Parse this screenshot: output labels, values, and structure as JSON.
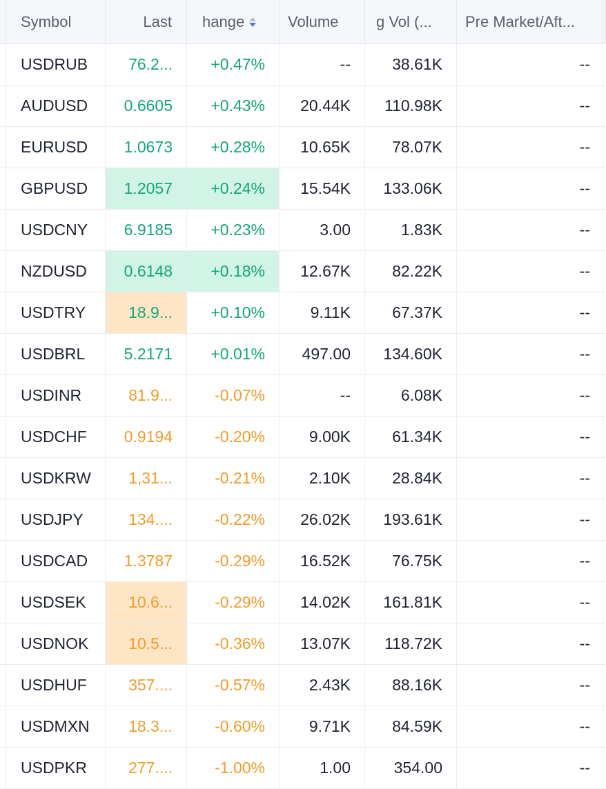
{
  "colors": {
    "positive": "#12a67a",
    "negative": "#f29b27",
    "highlight_green": "#d1f4e6",
    "highlight_orange": "#fde5c5",
    "sort_active": "#3b7ff5"
  },
  "columns": [
    "Symbol",
    "Last",
    "hange",
    "Volume",
    "g Vol (...",
    "Pre Market/Aft..."
  ],
  "rows": [
    {
      "symbol": "USDRUB",
      "last": "76.2...",
      "change": "+0.47%",
      "volume": "--",
      "avg_vol": "38.61K",
      "pre_market": "--",
      "dir": "up",
      "hl_last": "",
      "hl_change": ""
    },
    {
      "symbol": "AUDUSD",
      "last": "0.6605",
      "change": "+0.43%",
      "volume": "20.44K",
      "avg_vol": "110.98K",
      "pre_market": "--",
      "dir": "up",
      "hl_last": "",
      "hl_change": ""
    },
    {
      "symbol": "EURUSD",
      "last": "1.0673",
      "change": "+0.28%",
      "volume": "10.65K",
      "avg_vol": "78.07K",
      "pre_market": "--",
      "dir": "up",
      "hl_last": "",
      "hl_change": ""
    },
    {
      "symbol": "GBPUSD",
      "last": "1.2057",
      "change": "+0.24%",
      "volume": "15.54K",
      "avg_vol": "133.06K",
      "pre_market": "--",
      "dir": "up",
      "hl_last": "green",
      "hl_change": "green"
    },
    {
      "symbol": "USDCNY",
      "last": "6.9185",
      "change": "+0.23%",
      "volume": "3.00",
      "avg_vol": "1.83K",
      "pre_market": "--",
      "dir": "up",
      "hl_last": "",
      "hl_change": ""
    },
    {
      "symbol": "NZDUSD",
      "last": "0.6148",
      "change": "+0.18%",
      "volume": "12.67K",
      "avg_vol": "82.22K",
      "pre_market": "--",
      "dir": "up",
      "hl_last": "green",
      "hl_change": "green"
    },
    {
      "symbol": "USDTRY",
      "last": "18.9...",
      "change": "+0.10%",
      "volume": "9.11K",
      "avg_vol": "67.37K",
      "pre_market": "--",
      "dir": "up",
      "hl_last": "orange",
      "hl_change": ""
    },
    {
      "symbol": "USDBRL",
      "last": "5.2171",
      "change": "+0.01%",
      "volume": "497.00",
      "avg_vol": "134.60K",
      "pre_market": "--",
      "dir": "up",
      "hl_last": "",
      "hl_change": ""
    },
    {
      "symbol": "USDINR",
      "last": "81.9...",
      "change": "-0.07%",
      "volume": "--",
      "avg_vol": "6.08K",
      "pre_market": "--",
      "dir": "down",
      "hl_last": "",
      "hl_change": ""
    },
    {
      "symbol": "USDCHF",
      "last": "0.9194",
      "change": "-0.20%",
      "volume": "9.00K",
      "avg_vol": "61.34K",
      "pre_market": "--",
      "dir": "down",
      "hl_last": "",
      "hl_change": ""
    },
    {
      "symbol": "USDKRW",
      "last": "1,31...",
      "change": "-0.21%",
      "volume": "2.10K",
      "avg_vol": "28.84K",
      "pre_market": "--",
      "dir": "down",
      "hl_last": "",
      "hl_change": ""
    },
    {
      "symbol": "USDJPY",
      "last": "134....",
      "change": "-0.22%",
      "volume": "26.02K",
      "avg_vol": "193.61K",
      "pre_market": "--",
      "dir": "down",
      "hl_last": "",
      "hl_change": ""
    },
    {
      "symbol": "USDCAD",
      "last": "1.3787",
      "change": "-0.29%",
      "volume": "16.52K",
      "avg_vol": "76.75K",
      "pre_market": "--",
      "dir": "down",
      "hl_last": "",
      "hl_change": ""
    },
    {
      "symbol": "USDSEK",
      "last": "10.6...",
      "change": "-0.29%",
      "volume": "14.02K",
      "avg_vol": "161.81K",
      "pre_market": "--",
      "dir": "down",
      "hl_last": "orange",
      "hl_change": ""
    },
    {
      "symbol": "USDNOK",
      "last": "10.5...",
      "change": "-0.36%",
      "volume": "13.07K",
      "avg_vol": "118.72K",
      "pre_market": "--",
      "dir": "down",
      "hl_last": "orange",
      "hl_change": ""
    },
    {
      "symbol": "USDHUF",
      "last": "357....",
      "change": "-0.57%",
      "volume": "2.43K",
      "avg_vol": "88.16K",
      "pre_market": "--",
      "dir": "down",
      "hl_last": "",
      "hl_change": ""
    },
    {
      "symbol": "USDMXN",
      "last": "18.3...",
      "change": "-0.60%",
      "volume": "9.71K",
      "avg_vol": "84.59K",
      "pre_market": "--",
      "dir": "down",
      "hl_last": "",
      "hl_change": ""
    },
    {
      "symbol": "USDPKR",
      "last": "277....",
      "change": "-1.00%",
      "volume": "1.00",
      "avg_vol": "354.00",
      "pre_market": "--",
      "dir": "down",
      "hl_last": "",
      "hl_change": ""
    }
  ]
}
